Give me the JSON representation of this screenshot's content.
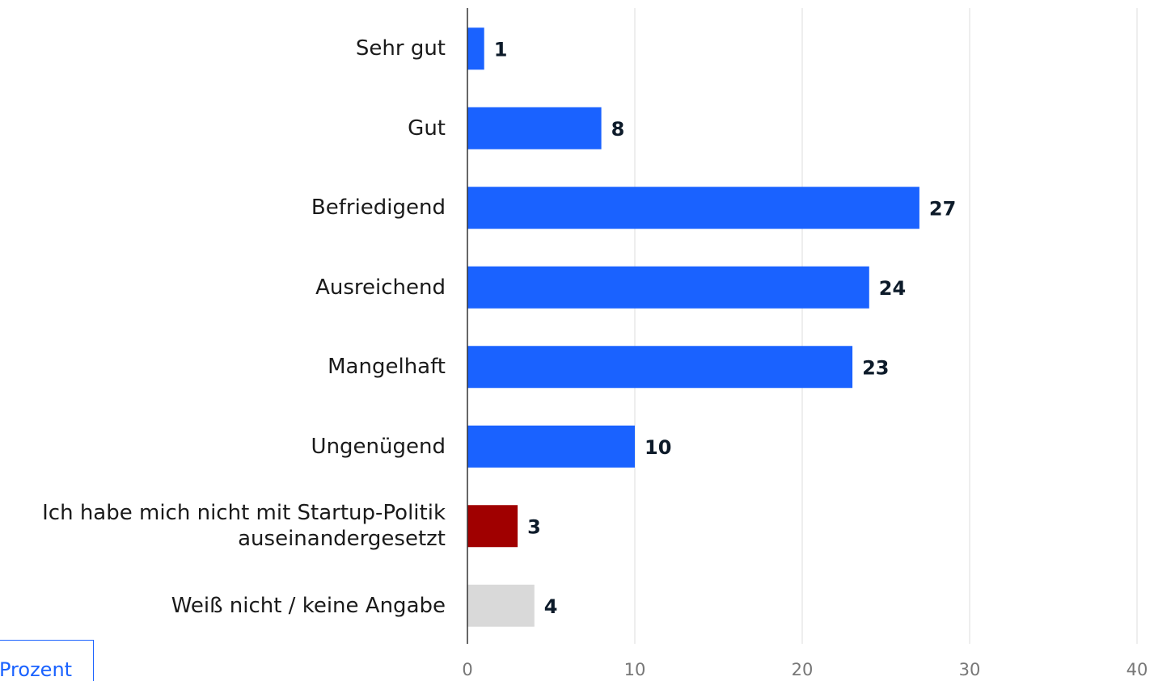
{
  "chart_data": {
    "type": "bar",
    "orientation": "horizontal",
    "categories": [
      "Sehr gut",
      "Gut",
      "Befriedigend",
      "Ausreichend",
      "Mangelhaft",
      "Ungenügend",
      "Ich habe mich nicht mit Startup-Politik\nauseinandergesetzt",
      "Weiß nicht / keine Angabe"
    ],
    "values": [
      1,
      8,
      27,
      24,
      23,
      10,
      3,
      4
    ],
    "colors": [
      "#1a62ff",
      "#1a62ff",
      "#1a62ff",
      "#1a62ff",
      "#1a62ff",
      "#1a62ff",
      "#a00000",
      "#d9d9d9"
    ],
    "xlim": [
      0,
      40
    ],
    "xticks": [
      0,
      10,
      20,
      30,
      40
    ],
    "grid": true,
    "unit_label": "Prozent"
  }
}
